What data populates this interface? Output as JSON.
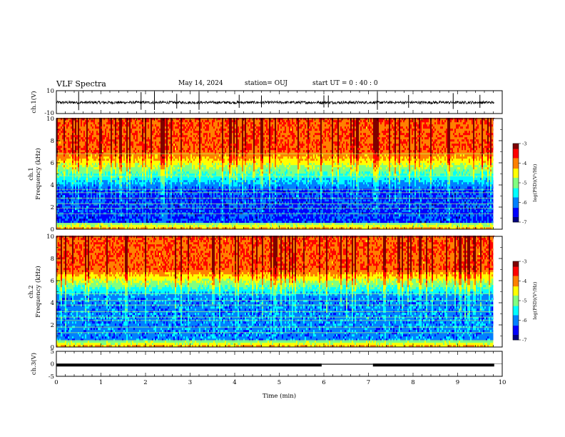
{
  "header": {
    "title": "VLF Spectra",
    "date": "May 14, 2024",
    "station": "station= OUJ",
    "start": "start  UT =   0 : 40 : 0"
  },
  "colors": {
    "spectrogram_scale": [
      "#00007f",
      "#0000ff",
      "#0080ff",
      "#00ffff",
      "#80ff80",
      "#ffff00",
      "#ff8000",
      "#ff0000",
      "#7f0000"
    ],
    "trace": "#000000"
  },
  "chart_data": [
    {
      "type": "line",
      "panel": "ch1-waveform",
      "ylabel": "ch.1(V)",
      "ylim": [
        -10,
        10
      ],
      "yticks": [
        "10",
        "-10"
      ],
      "series": [
        {
          "level": 0,
          "noise_amplitude": 1.2,
          "spike_times_min": [
            0.5,
            1.9,
            2.2,
            2.7,
            3.2,
            4.1,
            4.6,
            6.0,
            6.1,
            7.2,
            7.9,
            8.9,
            9.5
          ]
        }
      ],
      "xlim": [
        0,
        10
      ]
    },
    {
      "type": "heatmap",
      "panel": "ch1-spectrogram",
      "ylabel": "ch.1\nFrequency (kHz)",
      "ylim": [
        0,
        10
      ],
      "yticks": [
        "0",
        "2",
        "4",
        "6",
        "8",
        "10"
      ],
      "xlim": [
        0,
        9.8
      ],
      "colorbar": {
        "label": "log(PSD)(V²/Hz)",
        "range": [
          -7,
          -3
        ],
        "ticks": [
          "-3",
          "-4",
          "-5",
          "-6",
          "-7"
        ]
      },
      "features": [
        {
          "description_kind": "horizontal lines",
          "freqs_khz": [
            0.2,
            0.5,
            1.4,
            1.9,
            2.3,
            2.8,
            3.3,
            3.6,
            4.8,
            6.8
          ]
        },
        {
          "description_kind": "low-power band",
          "freq_range_khz": [
            0.5,
            3.5
          ],
          "log_psd": -6.3
        },
        {
          "description_kind": "high-power band",
          "freq_range_khz": [
            7,
            10
          ],
          "log_psd": -3.8
        }
      ]
    },
    {
      "type": "heatmap",
      "panel": "ch2-spectrogram",
      "ylabel": "ch.2\nFrequency (kHz)",
      "ylim": [
        0,
        10
      ],
      "yticks": [
        "0",
        "2",
        "4",
        "6",
        "8",
        "10"
      ],
      "xlim": [
        0,
        9.8
      ],
      "colorbar": {
        "label": "log(PSD)(V²/Hz)",
        "range": [
          -7,
          -3
        ],
        "ticks": [
          "-3",
          "-4",
          "-5",
          "-6",
          "-7"
        ]
      },
      "features": [
        {
          "description_kind": "horizontal lines",
          "freqs_khz": [
            0.6,
            1.3,
            1.8,
            2.4,
            2.7,
            3.2,
            3.8,
            4.2,
            4.8
          ]
        },
        {
          "description_kind": "low-power band",
          "freq_range_khz": [
            0.5,
            4.5
          ],
          "log_psd": -6.0
        },
        {
          "description_kind": "high-power band",
          "freq_range_khz": [
            7,
            10
          ],
          "log_psd": -3.8
        }
      ]
    },
    {
      "type": "line",
      "panel": "ch3-waveform",
      "ylabel": "ch.3(V)",
      "ylim": [
        -5,
        5
      ],
      "yticks": [
        "5",
        "0",
        "-5"
      ],
      "xlim": [
        0,
        10
      ],
      "series": [
        {
          "segments": [
            [
              0,
              5.95,
              -0.5
            ],
            [
              7.1,
              9.82,
              -0.5
            ]
          ],
          "gap_level": -0.2
        }
      ]
    }
  ],
  "xaxis": {
    "label": "Time (min)",
    "ticks": [
      "0",
      "1",
      "2",
      "3",
      "4",
      "5",
      "6",
      "7",
      "8",
      "9",
      "10"
    ]
  }
}
